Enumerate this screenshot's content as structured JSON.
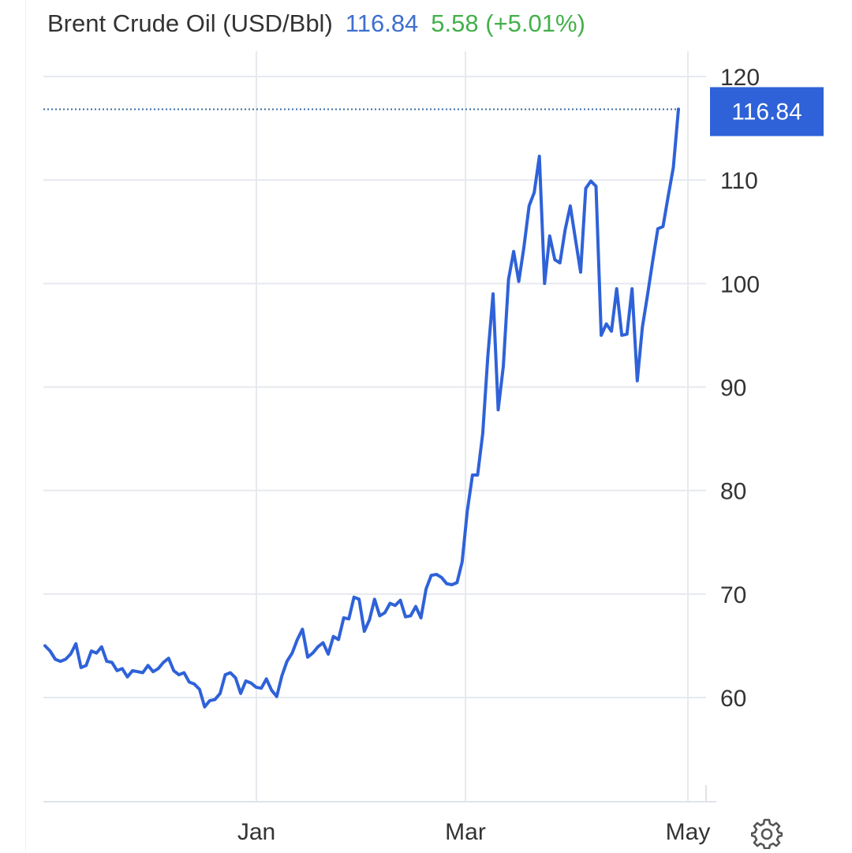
{
  "header": {
    "title": "Brent Crude Oil (USD/Bbl)",
    "price": "116.84",
    "change": "5.58 (+5.01%)"
  },
  "colors": {
    "line": "#2f62d8",
    "price_text": "#3d6fcf",
    "change_text": "#43b04a",
    "badge": "#2f62d8",
    "grid": "#e6e9ee"
  },
  "settings_icon": "gear-icon",
  "chart_data": {
    "type": "line",
    "title": "Brent Crude Oil (USD/Bbl)",
    "ylim": [
      50,
      120
    ],
    "y_ticks": [
      60,
      70,
      80,
      90,
      100,
      110,
      120
    ],
    "x_ticks": [
      "Jan",
      "Mar",
      "May"
    ],
    "grid": true,
    "last_value_badge": "116.84",
    "series": [
      {
        "values": [
          65.0,
          64.5,
          63.7,
          63.5,
          63.7,
          64.2,
          65.2,
          62.9,
          63.1,
          64.5,
          64.3,
          64.9,
          63.5,
          63.4,
          62.6,
          62.8,
          62.0,
          62.6,
          62.5,
          62.4,
          63.1,
          62.5,
          62.8,
          63.4,
          63.8,
          62.6,
          62.2,
          62.4,
          61.5,
          61.3,
          60.8,
          59.1,
          59.7,
          59.8,
          60.4,
          62.2,
          62.4,
          61.9,
          60.4,
          61.6,
          61.4,
          61.0,
          60.9,
          61.8,
          60.7,
          60.1,
          62.1,
          63.5,
          64.3,
          65.6,
          66.6,
          63.9,
          64.3,
          64.9,
          65.3,
          64.2,
          65.9,
          65.6,
          67.7,
          67.6,
          69.7,
          69.5,
          66.4,
          67.5,
          69.5,
          67.9,
          68.2,
          69.1,
          68.9,
          69.4,
          67.8,
          67.9,
          68.8,
          67.7,
          70.5,
          71.8,
          71.9,
          71.6,
          71.0,
          70.9,
          71.1,
          73.1,
          78.0,
          81.5,
          81.5,
          85.5,
          93.0,
          99.0,
          87.8,
          92.0,
          100.4,
          103.1,
          100.2,
          103.5,
          107.5,
          108.8,
          112.3,
          100.0,
          104.6,
          102.3,
          102.0,
          105.2,
          107.5,
          104.3,
          101.1,
          109.2,
          109.9,
          109.4,
          95.0,
          96.1,
          95.4,
          99.5,
          95.0,
          95.1,
          99.5,
          90.6,
          95.8,
          98.9,
          102.2,
          105.3,
          105.5,
          108.4,
          111.2,
          116.84
        ]
      }
    ]
  }
}
